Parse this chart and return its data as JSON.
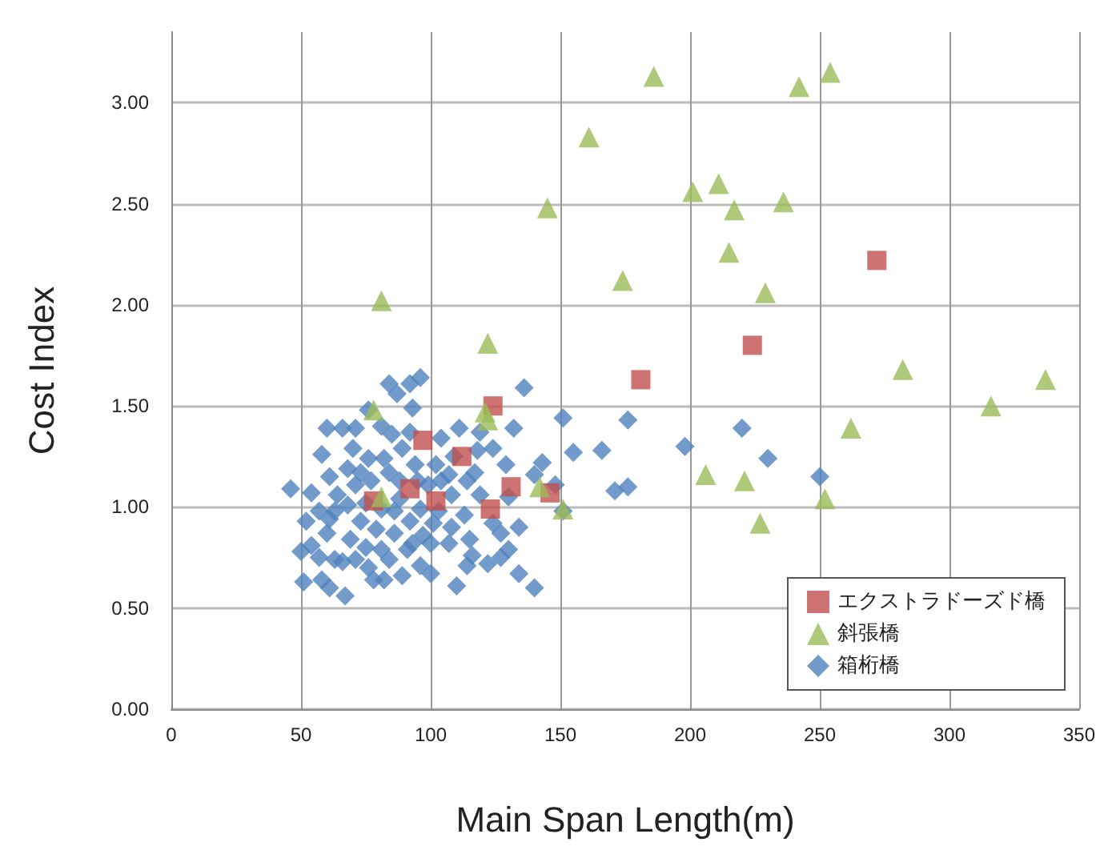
{
  "chart_data": {
    "type": "scatter",
    "xlabel": "Main Span Length(m)",
    "ylabel": "Cost Index",
    "xlim": [
      0,
      350
    ],
    "xticks": [
      0,
      50,
      100,
      150,
      200,
      250,
      300,
      350
    ],
    "ylim": [
      0,
      3.35
    ],
    "yticks": [
      {
        "value": 0,
        "label": "0.00"
      },
      {
        "value": 0.5,
        "label": "0.50"
      },
      {
        "value": 1,
        "label": "1.00"
      },
      {
        "value": 1.5,
        "label": "1.50"
      },
      {
        "value": 2,
        "label": "2.00"
      },
      {
        "value": 2.5,
        "label": "2.50"
      },
      {
        "value": 3,
        "label": "3.00"
      }
    ],
    "grid": true,
    "legend": "bottom right",
    "series": [
      {
        "name": "エクストラドーズド橋",
        "color": "#c0504d",
        "marker": "square",
        "x": [
          78,
          92,
          97,
          102,
          112,
          124,
          123,
          131,
          146,
          181,
          224,
          272
        ],
        "values": [
          1.03,
          1.09,
          1.33,
          1.03,
          1.25,
          1.5,
          0.99,
          1.1,
          1.07,
          1.63,
          1.8,
          2.22
        ]
      },
      {
        "name": "斜張橋",
        "color": "#9bbb59",
        "marker": "triangle",
        "x": [
          78,
          81,
          81,
          122,
          121,
          122,
          142,
          151,
          145,
          161,
          174,
          186,
          201,
          211,
          217,
          215,
          236,
          242,
          254,
          229,
          206,
          221,
          227,
          262,
          282,
          252,
          316,
          337
        ],
        "values": [
          1.48,
          2.02,
          1.05,
          1.81,
          1.47,
          1.43,
          1.1,
          0.99,
          2.48,
          2.83,
          2.12,
          3.13,
          2.56,
          2.6,
          2.47,
          2.26,
          2.51,
          3.08,
          3.15,
          2.06,
          1.16,
          1.13,
          0.92,
          1.39,
          1.68,
          1.04,
          1.5,
          1.63
        ]
      },
      {
        "name": "箱桁橋",
        "color": "#4f81bd",
        "marker": "diamond",
        "x": [
          46,
          51,
          250,
          230,
          220,
          198,
          176,
          176,
          171,
          166,
          155,
          151,
          151,
          148,
          136,
          140,
          143,
          140,
          134,
          130,
          134,
          132,
          130,
          127,
          127,
          124,
          119,
          116,
          114,
          110,
          115,
          118,
          117,
          111,
          113,
          107,
          104,
          103,
          100,
          96,
          92,
          93,
          87,
          84,
          81,
          76,
          71,
          70,
          66,
          60,
          58,
          61,
          64,
          57,
          52,
          54,
          57,
          58,
          61,
          67,
          71,
          76,
          82,
          89,
          96,
          100,
          107,
          86,
          92,
          96,
          88,
          81,
          73,
          69,
          75,
          66,
          84,
          77,
          71,
          68,
          94,
          99,
          95,
          104,
          108,
          89,
          85,
          82,
          88,
          75,
          81,
          97,
          91,
          84,
          78,
          60,
          63,
          68,
          50,
          54,
          61,
          119,
          124,
          129,
          109,
          114,
          92,
          76,
          73,
          102,
          79,
          86,
          93,
          101,
          108,
          122,
          63
        ],
        "values": [
          1.09,
          0.63,
          1.15,
          1.24,
          1.39,
          1.3,
          1.43,
          1.1,
          1.08,
          1.28,
          1.27,
          1.44,
          0.98,
          1.11,
          1.59,
          1.16,
          1.22,
          0.6,
          0.67,
          0.79,
          0.9,
          1.39,
          1.05,
          0.87,
          0.75,
          0.92,
          1.06,
          0.76,
          0.71,
          0.61,
          0.84,
          1.28,
          1.17,
          1.39,
          0.96,
          1.16,
          1.34,
          0.98,
          0.82,
          1.64,
          1.61,
          1.49,
          1.56,
          1.61,
          1.4,
          1.48,
          1.39,
          1.29,
          1.39,
          1.39,
          1.26,
          1.15,
          1.06,
          0.98,
          0.93,
          0.81,
          0.75,
          0.64,
          0.6,
          0.56,
          0.74,
          0.7,
          0.64,
          0.66,
          0.71,
          0.67,
          0.82,
          0.87,
          0.93,
          0.99,
          1.04,
          0.99,
          0.93,
          0.84,
          0.8,
          0.73,
          1.17,
          1.13,
          1.11,
          1.19,
          1.21,
          1.11,
          1.13,
          1.13,
          1.06,
          1.29,
          1.36,
          1.24,
          1.13,
          1.02,
          0.79,
          0.86,
          0.79,
          0.74,
          0.64,
          0.87,
          0.98,
          1.01,
          0.78,
          1.07,
          0.94,
          1.37,
          1.29,
          1.21,
          1.25,
          1.13,
          1.37,
          1.24,
          1.17,
          1.21,
          0.89,
          0.98,
          0.82,
          0.92,
          0.9,
          0.72,
          0.74
        ]
      }
    ]
  }
}
